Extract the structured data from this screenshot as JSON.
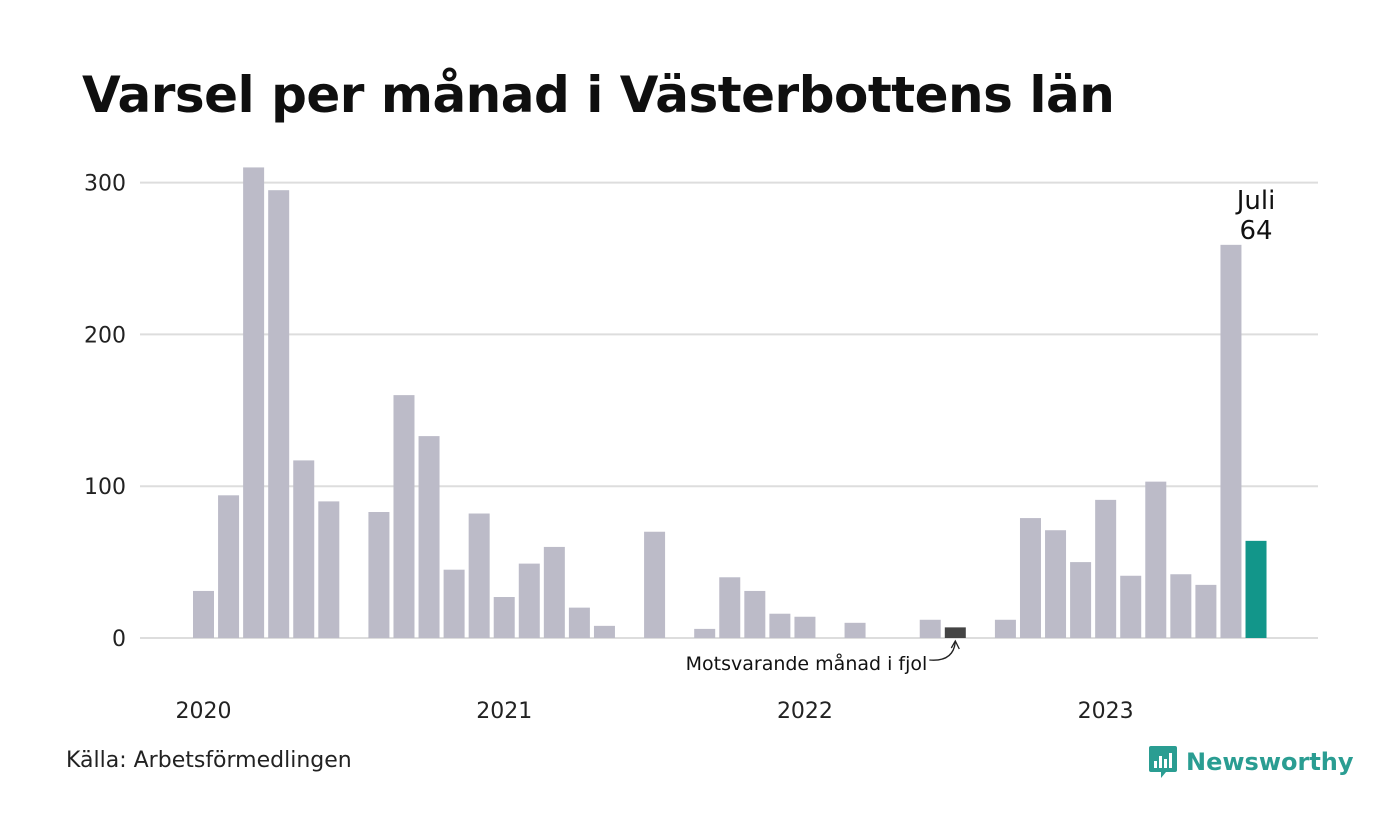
{
  "title": "Varsel per månad i Västerbottens län",
  "source": "Källa: Arbetsförmedlingen",
  "brand": {
    "name": "Newsworthy",
    "icon": "newsworthy-logo-icon",
    "color": "#2a9d92"
  },
  "colors": {
    "bar": "#bcbbc8",
    "comparison": "#444444",
    "current": "#12968a",
    "grid": "#dddddd"
  },
  "chart_data": {
    "type": "bar",
    "title": "Varsel per månad i Västerbottens län",
    "xlabel": "",
    "ylabel": "",
    "ylim": [
      0,
      320
    ],
    "yticks": [
      0,
      100,
      200,
      300
    ],
    "grid": true,
    "year_labels": [
      "2020",
      "2021",
      "2022",
      "2023"
    ],
    "categories": [
      "2020-01",
      "2020-02",
      "2020-03",
      "2020-04",
      "2020-05",
      "2020-06",
      "2020-07",
      "2020-08",
      "2020-09",
      "2020-10",
      "2020-11",
      "2020-12",
      "2021-01",
      "2021-02",
      "2021-03",
      "2021-04",
      "2021-05",
      "2021-06",
      "2021-07",
      "2021-08",
      "2021-09",
      "2021-10",
      "2021-11",
      "2021-12",
      "2022-01",
      "2022-02",
      "2022-03",
      "2022-04",
      "2022-05",
      "2022-06",
      "2022-07",
      "2022-08",
      "2022-09",
      "2022-10",
      "2022-11",
      "2022-12",
      "2023-01",
      "2023-02",
      "2023-03",
      "2023-04",
      "2023-05",
      "2023-06",
      "2023-07"
    ],
    "values": [
      31,
      94,
      310,
      295,
      117,
      90,
      0,
      83,
      160,
      133,
      45,
      82,
      27,
      49,
      60,
      20,
      8,
      0,
      70,
      0,
      6,
      40,
      31,
      16,
      14,
      0,
      10,
      0,
      0,
      12,
      7,
      0,
      12,
      79,
      71,
      50,
      91,
      41,
      103,
      42,
      35,
      259,
      64
    ],
    "comparison_index": 30,
    "highlight_index": 42,
    "highlight_label": {
      "month": "Juli",
      "value": "64"
    },
    "comparison_annotation": "Motsvarande månad i fjol"
  }
}
